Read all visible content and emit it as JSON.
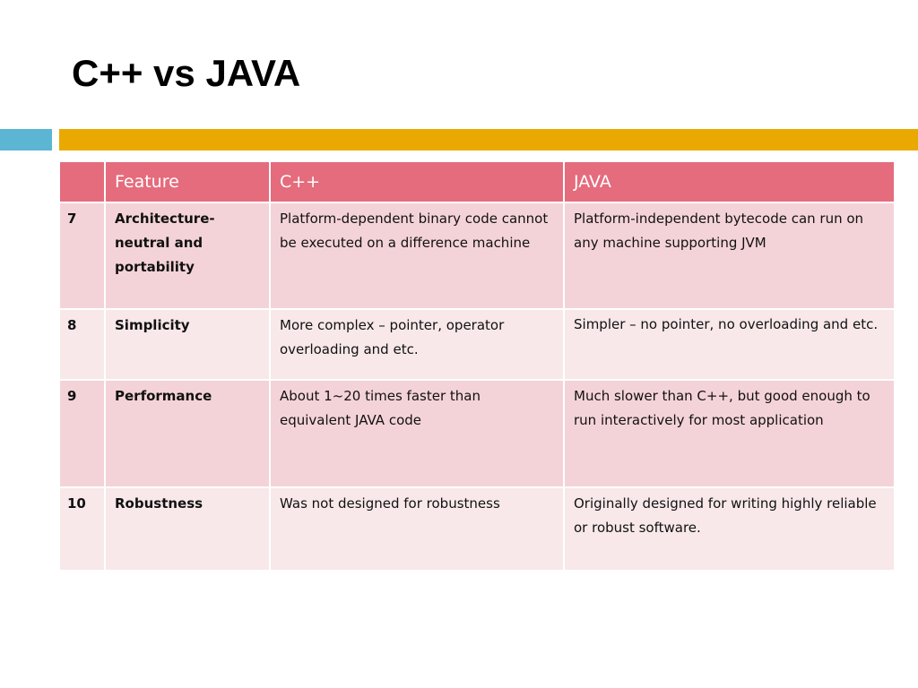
{
  "slide": {
    "title": "C++ vs JAVA"
  },
  "table": {
    "headers": [
      "",
      "Feature",
      "C++",
      "JAVA"
    ],
    "rows": [
      {
        "num": "7",
        "feature": "Architecture-neutral and portability",
        "cpp": "Platform-dependent binary code cannot be executed on a difference machine",
        "java": "Platform-independent bytecode can run on any machine supporting JVM"
      },
      {
        "num": "8",
        "feature": "Simplicity",
        "cpp": "More complex – pointer, operator overloading and etc.",
        "java": "Simpler – no pointer, no overloading and etc."
      },
      {
        "num": "9",
        "feature": "Performance",
        "cpp": "About 1~20 times faster than equivalent JAVA code",
        "java": "Much slower than C++, but good enough to run interactively for most application"
      },
      {
        "num": "10",
        "feature": "Robustness",
        "cpp": "Was not designed for robustness",
        "java": "Originally designed for writing highly reliable or robust software."
      }
    ]
  },
  "colors": {
    "accent_blue": "#5bb5d3",
    "accent_gold": "#e9a900",
    "header_row": "#e56c7d",
    "row_dark": "#f4d3d8",
    "row_light": "#f8e8ea"
  }
}
